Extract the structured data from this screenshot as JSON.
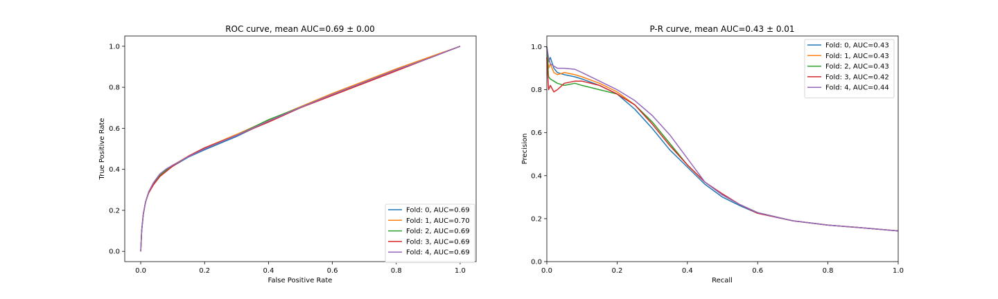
{
  "chart_data": [
    {
      "type": "line",
      "title": "ROC curve, mean AUC=0.69 ± 0.00",
      "xlabel": "False Positive Rate",
      "ylabel": "True Positive Rate",
      "xlim": [
        -0.05,
        1.05
      ],
      "ylim": [
        -0.05,
        1.05
      ],
      "xticks": [
        0.0,
        0.2,
        0.4,
        0.6,
        0.8,
        1.0
      ],
      "yticks": [
        0.0,
        0.2,
        0.4,
        0.6,
        0.8,
        1.0
      ],
      "xtick_labels": [
        "0.0",
        "0.2",
        "0.4",
        "0.6",
        "0.8",
        "1.0"
      ],
      "ytick_labels": [
        "0.0",
        "0.2",
        "0.4",
        "0.6",
        "0.8",
        "1.0"
      ],
      "legend_position": "lower-right",
      "grid": false,
      "series": [
        {
          "name": "Fold: 0, AUC=0.69",
          "color": "#1f77b4",
          "x": [
            0,
            0.003,
            0.008,
            0.015,
            0.025,
            0.04,
            0.06,
            0.08,
            0.1,
            0.15,
            0.2,
            0.3,
            0.4,
            0.5,
            0.6,
            0.7,
            0.8,
            0.9,
            1.0
          ],
          "y": [
            0,
            0.1,
            0.18,
            0.24,
            0.29,
            0.33,
            0.37,
            0.395,
            0.415,
            0.46,
            0.495,
            0.56,
            0.635,
            0.7,
            0.765,
            0.825,
            0.885,
            0.94,
            1.0
          ]
        },
        {
          "name": "Fold: 1, AUC=0.70",
          "color": "#ff7f0e",
          "x": [
            0,
            0.003,
            0.008,
            0.015,
            0.025,
            0.04,
            0.06,
            0.08,
            0.1,
            0.15,
            0.2,
            0.3,
            0.4,
            0.5,
            0.6,
            0.7,
            0.8,
            0.9,
            1.0
          ],
          "y": [
            0,
            0.1,
            0.18,
            0.24,
            0.29,
            0.335,
            0.375,
            0.4,
            0.42,
            0.465,
            0.505,
            0.57,
            0.64,
            0.705,
            0.77,
            0.83,
            0.89,
            0.945,
            1.0
          ]
        },
        {
          "name": "Fold: 2, AUC=0.69",
          "color": "#2ca02c",
          "x": [
            0,
            0.003,
            0.008,
            0.015,
            0.025,
            0.04,
            0.06,
            0.08,
            0.1,
            0.15,
            0.2,
            0.3,
            0.4,
            0.5,
            0.6,
            0.7,
            0.8,
            0.9,
            1.0
          ],
          "y": [
            0,
            0.1,
            0.18,
            0.24,
            0.29,
            0.33,
            0.37,
            0.397,
            0.418,
            0.463,
            0.5,
            0.565,
            0.642,
            0.702,
            0.765,
            0.825,
            0.885,
            0.94,
            1.0
          ]
        },
        {
          "name": "Fold: 3, AUC=0.69",
          "color": "#d62728",
          "x": [
            0,
            0.003,
            0.008,
            0.015,
            0.025,
            0.04,
            0.06,
            0.08,
            0.1,
            0.15,
            0.2,
            0.3,
            0.4,
            0.5,
            0.6,
            0.7,
            0.8,
            0.9,
            1.0
          ],
          "y": [
            0,
            0.1,
            0.18,
            0.24,
            0.285,
            0.325,
            0.365,
            0.39,
            0.415,
            0.465,
            0.505,
            0.565,
            0.63,
            0.7,
            0.76,
            0.82,
            0.88,
            0.94,
            1.0
          ]
        },
        {
          "name": "Fold: 4, AUC=0.69",
          "color": "#9467bd",
          "x": [
            0,
            0.003,
            0.008,
            0.015,
            0.025,
            0.04,
            0.06,
            0.08,
            0.1,
            0.15,
            0.2,
            0.3,
            0.4,
            0.5,
            0.6,
            0.7,
            0.8,
            0.9,
            1.0
          ],
          "y": [
            0,
            0.1,
            0.18,
            0.24,
            0.29,
            0.335,
            0.378,
            0.402,
            0.42,
            0.462,
            0.5,
            0.565,
            0.635,
            0.702,
            0.765,
            0.825,
            0.885,
            0.94,
            1.0
          ]
        }
      ]
    },
    {
      "type": "line",
      "title": "P-R curve, mean AUC=0.43 ± 0.01",
      "xlabel": "Recall",
      "ylabel": "Precision",
      "xlim": [
        0.0,
        1.0
      ],
      "ylim": [
        0.0,
        1.05
      ],
      "xticks": [
        0.0,
        0.2,
        0.4,
        0.6,
        0.8,
        1.0
      ],
      "yticks": [
        0.0,
        0.2,
        0.4,
        0.6,
        0.8,
        1.0
      ],
      "xtick_labels": [
        "0.0",
        "0.2",
        "0.4",
        "0.6",
        "0.8",
        "1.0"
      ],
      "ytick_labels": [
        "0.0",
        "0.2",
        "0.4",
        "0.6",
        "0.8",
        "1.0"
      ],
      "legend_position": "upper-right",
      "grid": false,
      "series": [
        {
          "name": "Fold: 0, AUC=0.43",
          "color": "#1f77b4",
          "x": [
            0,
            0.005,
            0.01,
            0.02,
            0.03,
            0.05,
            0.08,
            0.1,
            0.15,
            0.2,
            0.25,
            0.3,
            0.35,
            0.4,
            0.45,
            0.5,
            0.55,
            0.6,
            0.7,
            0.8,
            0.9,
            1.0
          ],
          "y": [
            1.0,
            0.93,
            0.95,
            0.9,
            0.88,
            0.87,
            0.86,
            0.85,
            0.82,
            0.78,
            0.71,
            0.62,
            0.52,
            0.44,
            0.36,
            0.3,
            0.26,
            0.225,
            0.19,
            0.17,
            0.157,
            0.143
          ]
        },
        {
          "name": "Fold: 1, AUC=0.43",
          "color": "#ff7f0e",
          "x": [
            0,
            0.005,
            0.01,
            0.02,
            0.03,
            0.05,
            0.08,
            0.1,
            0.15,
            0.2,
            0.25,
            0.3,
            0.35,
            0.4,
            0.45,
            0.5,
            0.55,
            0.6,
            0.7,
            0.8,
            0.9,
            1.0
          ],
          "y": [
            1.0,
            0.9,
            0.92,
            0.88,
            0.87,
            0.88,
            0.87,
            0.86,
            0.83,
            0.79,
            0.73,
            0.65,
            0.55,
            0.45,
            0.37,
            0.31,
            0.265,
            0.228,
            0.19,
            0.17,
            0.157,
            0.143
          ]
        },
        {
          "name": "Fold: 2, AUC=0.43",
          "color": "#2ca02c",
          "x": [
            0,
            0.005,
            0.01,
            0.02,
            0.03,
            0.05,
            0.08,
            0.1,
            0.15,
            0.2,
            0.25,
            0.3,
            0.35,
            0.4,
            0.45,
            0.5,
            0.55,
            0.6,
            0.7,
            0.8,
            0.9,
            1.0
          ],
          "y": [
            1.0,
            0.86,
            0.85,
            0.84,
            0.83,
            0.82,
            0.83,
            0.82,
            0.8,
            0.78,
            0.73,
            0.65,
            0.55,
            0.45,
            0.37,
            0.31,
            0.265,
            0.228,
            0.19,
            0.17,
            0.157,
            0.143
          ]
        },
        {
          "name": "Fold: 3, AUC=0.42",
          "color": "#d62728",
          "x": [
            0,
            0.005,
            0.01,
            0.02,
            0.03,
            0.05,
            0.08,
            0.1,
            0.15,
            0.2,
            0.25,
            0.3,
            0.35,
            0.4,
            0.45,
            0.5,
            0.55,
            0.6,
            0.7,
            0.8,
            0.9,
            1.0
          ],
          "y": [
            0.95,
            0.8,
            0.82,
            0.79,
            0.8,
            0.83,
            0.84,
            0.84,
            0.82,
            0.78,
            0.73,
            0.64,
            0.54,
            0.45,
            0.37,
            0.315,
            0.265,
            0.225,
            0.19,
            0.17,
            0.157,
            0.143
          ]
        },
        {
          "name": "Fold: 4, AUC=0.44",
          "color": "#9467bd",
          "x": [
            0,
            0.005,
            0.01,
            0.02,
            0.03,
            0.05,
            0.08,
            0.1,
            0.15,
            0.2,
            0.25,
            0.3,
            0.35,
            0.4,
            0.45,
            0.5,
            0.55,
            0.6,
            0.7,
            0.8,
            0.9,
            1.0
          ],
          "y": [
            1.0,
            0.95,
            0.92,
            0.91,
            0.9,
            0.9,
            0.895,
            0.88,
            0.84,
            0.8,
            0.75,
            0.68,
            0.59,
            0.48,
            0.37,
            0.31,
            0.265,
            0.228,
            0.19,
            0.17,
            0.157,
            0.143
          ]
        }
      ]
    }
  ]
}
